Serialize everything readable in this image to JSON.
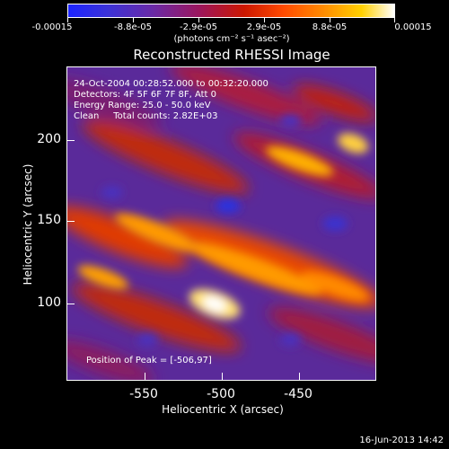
{
  "colorbar": {
    "labels": [
      "-0.00015",
      "-8.8e-05",
      "-2.9e-05",
      "2.9e-05",
      "8.8e-05",
      "0.00015"
    ],
    "unit": "(photons cm⁻² s⁻¹ asec⁻²)",
    "colors": [
      "#1c24ff",
      "#6a2aa6",
      "#9b165e",
      "#cc1700",
      "#ff8a00",
      "#ffffff"
    ]
  },
  "title": "Reconstructed RHESSI Image",
  "info": {
    "line1": "24-Oct-2004 00:28:52.000 to 00:32:20.000",
    "line2": "Detectors: 4F 5F 6F 7F 8F, Att 0",
    "line3": "Energy Range: 25.0 - 50.0 keV",
    "line4": "Clean     Total counts: 2.82E+03"
  },
  "peak_text": "Position of Peak = [-506,97]",
  "axes": {
    "xlabel": "Heliocentric X (arcsec)",
    "ylabel": "Heliocentric Y (arcsec)",
    "xticks": [
      "-550",
      "-500",
      "-450"
    ],
    "yticks": [
      "200",
      "150",
      "100"
    ]
  },
  "timestamp": "16-Jun-2013 14:42"
}
